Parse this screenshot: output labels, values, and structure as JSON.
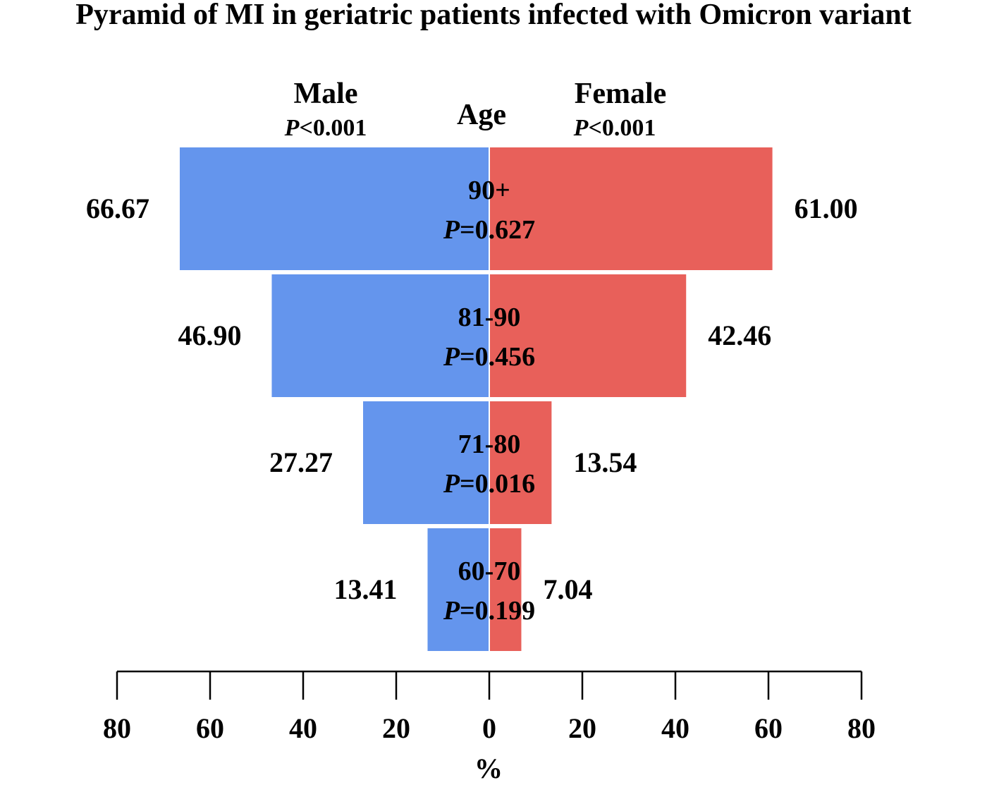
{
  "chart_data": {
    "type": "bar",
    "subtype": "population-pyramid",
    "title": "Pyramid of MI in geriatric patients infected with Omicron variant",
    "center_label": "Age",
    "xlabel": "%",
    "xlim": [
      0,
      80
    ],
    "ticks": [
      80,
      60,
      40,
      20,
      0,
      20,
      40,
      60,
      80
    ],
    "groups": [
      {
        "name": "Male",
        "p_prefix": "P",
        "p_text": "<0.001",
        "color": "#6495ED"
      },
      {
        "name": "Female",
        "p_prefix": "P",
        "p_text": "<0.001",
        "color": "#E8605A"
      }
    ],
    "categories": [
      {
        "age": "90+",
        "p_prefix": "P",
        "p_text": "=0.627",
        "male": 66.67,
        "female": 61.0,
        "male_label": "66.67",
        "female_label": "61.00"
      },
      {
        "age": "81-90",
        "p_prefix": "P",
        "p_text": "=0.456",
        "male": 46.9,
        "female": 42.46,
        "male_label": "46.90",
        "female_label": "42.46"
      },
      {
        "age": "71-80",
        "p_prefix": "P",
        "p_text": "=0.016",
        "male": 27.27,
        "female": 13.54,
        "male_label": "27.27",
        "female_label": "13.54"
      },
      {
        "age": "60-70",
        "p_prefix": "P",
        "p_text": "=0.199",
        "male": 13.41,
        "female": 7.04,
        "male_label": "13.41",
        "female_label": "7.04"
      }
    ]
  }
}
